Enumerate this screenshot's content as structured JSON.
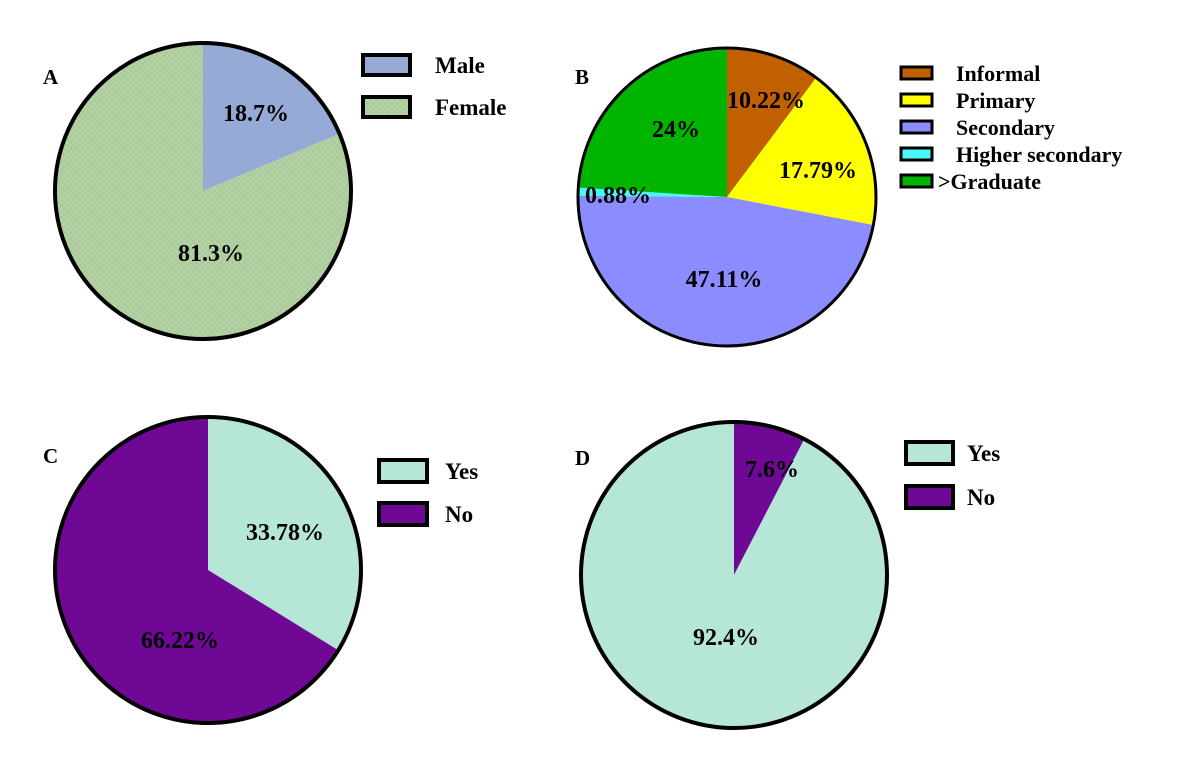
{
  "chart_data": [
    {
      "type": "pie",
      "panel": "A",
      "title": "",
      "categories": [
        "Male",
        "Female"
      ],
      "values": [
        18.7,
        81.3
      ],
      "labels": [
        "18.7%",
        "81.3%"
      ],
      "colors": [
        "#96aad6",
        "pattern-green"
      ],
      "legend": [
        "Male",
        "Female"
      ],
      "legend_position": "top-right",
      "start": "12 o'clock, clockwise"
    },
    {
      "type": "pie",
      "panel": "B",
      "title": "",
      "categories": [
        "Informal",
        "Primary",
        "Secondary",
        "Higher secondary",
        ">Graduate"
      ],
      "values": [
        10.22,
        17.79,
        47.11,
        0.88,
        24
      ],
      "labels": [
        "10.22%",
        "17.79%",
        "47.11%",
        "0.88%",
        "24%"
      ],
      "colors": [
        "#c06000",
        "#ffff00",
        "#8a8cff",
        "#48f8f8",
        "#00b400"
      ],
      "legend": [
        "Informal",
        "Primary",
        "Secondary",
        "Higher secondary",
        ">Graduate"
      ],
      "legend_position": "top-right",
      "start": "12 o'clock, clockwise"
    },
    {
      "type": "pie",
      "panel": "C",
      "title": "",
      "categories": [
        "Yes",
        "No"
      ],
      "values": [
        33.78,
        66.22
      ],
      "labels": [
        "33.78%",
        "66.22%"
      ],
      "colors": [
        "#b6e6d6",
        "#700896"
      ],
      "legend": [
        "Yes",
        "No"
      ],
      "legend_position": "top-right",
      "start": "12 o'clock, clockwise"
    },
    {
      "type": "pie",
      "panel": "D",
      "title": "",
      "categories": [
        "No",
        "Yes"
      ],
      "values": [
        7.6,
        92.4
      ],
      "labels": [
        "7.6%",
        "92.4%"
      ],
      "colors": [
        "#700896",
        "#b6e6d6"
      ],
      "legend": [
        "Yes",
        "No"
      ],
      "legend_colors": [
        "#b6e6d6",
        "#700896"
      ],
      "legend_position": "top-right",
      "start": "12 o'clock, clockwise"
    }
  ]
}
